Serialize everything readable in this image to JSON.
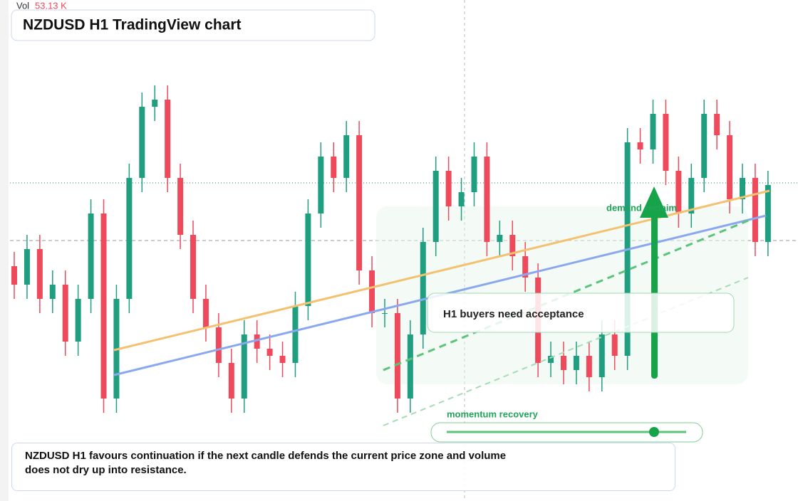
{
  "header": {
    "title": "NZDUSD H1 TradingView chart",
    "vol_label": "Vol",
    "vol_value": "53.13 K"
  },
  "annotations": [
    "demand reclaim",
    "H1 buyers need acceptance",
    "momentum recovery"
  ],
  "caption": "NZDUSD H1 favours continuation if the next candle defends the current price zone and volume does not dry up into resistance.",
  "chart_data": {
    "type": "candlestick",
    "up_color": "#1f9e80",
    "down_color": "#ee4a5c",
    "ylim": [
      0,
      704
    ],
    "open": [
      330,
      304,
      354,
      284,
      304,
      224,
      284,
      404,
      144,
      284,
      454,
      554,
      564,
      454,
      374,
      284,
      244,
      194,
      144,
      234,
      214,
      204,
      194,
      274,
      404,
      484,
      454,
      514,
      324,
      264,
      264,
      144,
      234,
      364,
      464,
      414,
      434,
      484,
      364,
      374,
      344,
      314,
      194,
      204,
      184,
      204,
      174,
      234,
      204,
      504,
      494,
      544,
      464,
      404,
      454,
      544,
      514,
      424,
      454,
      364
    ],
    "high": [
      350,
      374,
      374,
      324,
      324,
      304,
      424,
      424,
      304,
      474,
      574,
      584,
      584,
      474,
      394,
      304,
      264,
      214,
      254,
      254,
      234,
      224,
      294,
      424,
      504,
      504,
      534,
      534,
      344,
      284,
      284,
      254,
      384,
      484,
      484,
      454,
      504,
      504,
      394,
      394,
      364,
      334,
      224,
      224,
      224,
      224,
      254,
      254,
      524,
      524,
      564,
      564,
      484,
      474,
      564,
      564,
      534,
      474,
      474,
      464
    ],
    "low": [
      284,
      284,
      264,
      264,
      204,
      204,
      264,
      124,
      124,
      264,
      434,
      534,
      434,
      354,
      264,
      224,
      174,
      124,
      124,
      194,
      184,
      174,
      174,
      254,
      384,
      434,
      434,
      304,
      244,
      244,
      124,
      124,
      214,
      344,
      394,
      394,
      414,
      344,
      344,
      324,
      294,
      174,
      174,
      164,
      164,
      154,
      154,
      184,
      184,
      474,
      474,
      444,
      384,
      384,
      434,
      494,
      404,
      404,
      344,
      344
    ],
    "close": [
      304,
      354,
      284,
      304,
      224,
      284,
      404,
      144,
      284,
      454,
      554,
      564,
      454,
      374,
      284,
      244,
      194,
      144,
      234,
      214,
      204,
      194,
      274,
      404,
      484,
      454,
      514,
      324,
      264,
      264,
      144,
      234,
      364,
      464,
      414,
      434,
      484,
      364,
      374,
      344,
      314,
      194,
      204,
      184,
      204,
      174,
      234,
      204,
      504,
      494,
      544,
      464,
      404,
      454,
      544,
      514,
      424,
      454,
      364,
      444
    ]
  }
}
